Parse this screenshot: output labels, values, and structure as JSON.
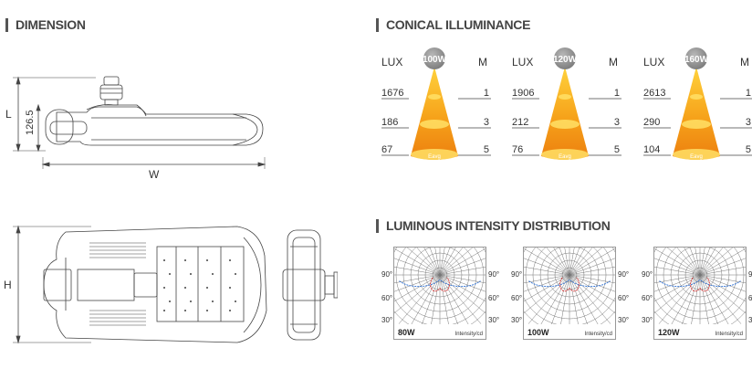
{
  "sections": {
    "dimension": "DIMENSION",
    "illuminance": "CONICAL ILLUMINANCE",
    "distribution": "LUMINOUS INTENSITY DISTRIBUTION"
  },
  "dimension": {
    "side": {
      "l_label": "L",
      "height_value": "126.5",
      "w_label": "W"
    },
    "top": {
      "h_label": "H"
    }
  },
  "illuminance": {
    "header_left": "LUX",
    "header_right": "M",
    "eavg": "Eavg",
    "blocks": [
      {
        "power": "100W",
        "lux": [
          "1676",
          "186",
          "67"
        ],
        "m": [
          "1",
          "3",
          "5"
        ]
      },
      {
        "power": "120W",
        "lux": [
          "1906",
          "212",
          "76"
        ],
        "m": [
          "1",
          "3",
          "5"
        ]
      },
      {
        "power": "160W",
        "lux": [
          "2613",
          "290",
          "104"
        ],
        "m": [
          "1",
          "3",
          "5"
        ]
      }
    ]
  },
  "distribution": {
    "angle_90": "90°",
    "angle_60": "60°",
    "angle_30": "30°",
    "unit": "Intensity/cd",
    "charts": [
      {
        "power": "80W"
      },
      {
        "power": "100W"
      },
      {
        "power": "120W"
      }
    ]
  }
}
